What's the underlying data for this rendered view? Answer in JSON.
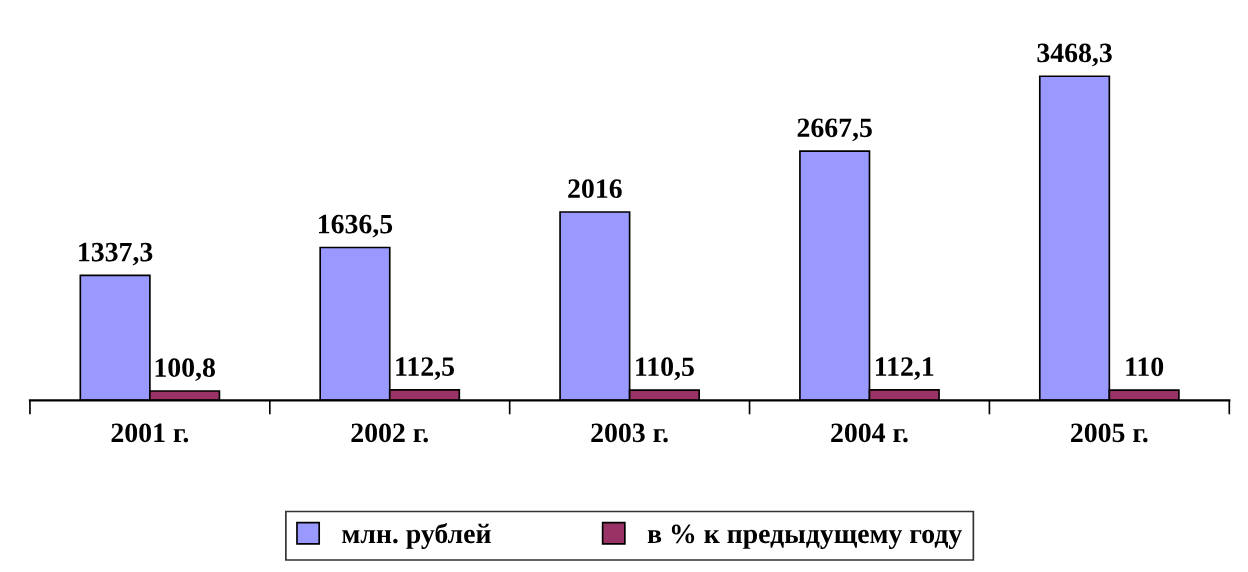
{
  "chart_data": {
    "type": "bar",
    "categories": [
      "2001 г.",
      "2002 г.",
      "2003 г.",
      "2004 г.",
      "2005 г."
    ],
    "series": [
      {
        "name": "млн. рублей",
        "color": "#9999ff",
        "values": [
          1337.3,
          1636.5,
          2016,
          2667.5,
          3468.3
        ],
        "value_labels": [
          "1337,3",
          "1636,5",
          "2016",
          "2667,5",
          "3468,3"
        ]
      },
      {
        "name": "в % к предыдущему году",
        "color": "#993366",
        "values": [
          100.8,
          112.5,
          110.5,
          112.1,
          110
        ],
        "value_labels": [
          "100,8",
          "112,5",
          "110,5",
          "112,1",
          "110"
        ]
      }
    ],
    "legend": "bottom",
    "grid": false
  }
}
